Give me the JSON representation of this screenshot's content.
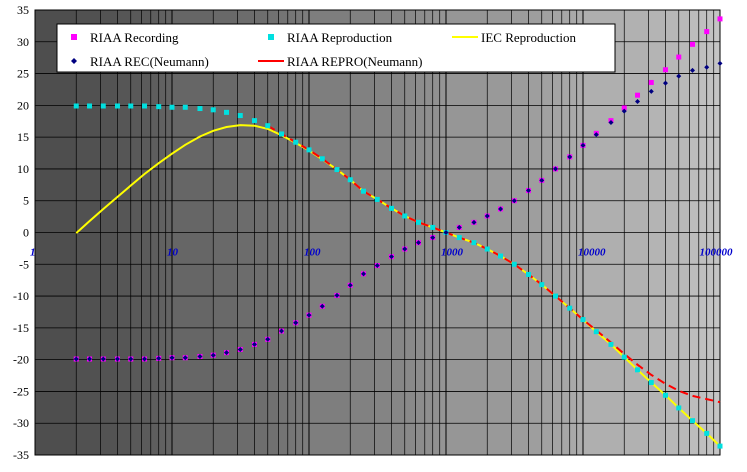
{
  "chart_data": {
    "type": "scatter",
    "x_scale": "log",
    "xlim": [
      1,
      100000
    ],
    "ylim": [
      -35,
      35
    ],
    "y_ticks": [
      35,
      30,
      25,
      20,
      15,
      10,
      5,
      0,
      -5,
      -10,
      -15,
      -20,
      -25,
      -30,
      -35
    ],
    "x_ticks": [
      {
        "value": 1,
        "label": "1"
      },
      {
        "value": 10,
        "label": "10"
      },
      {
        "value": 100,
        "label": "100"
      },
      {
        "value": 1000,
        "label": "1000"
      },
      {
        "value": 10000,
        "label": "10000"
      },
      {
        "value": 100000,
        "label": "100000"
      }
    ],
    "grid": true,
    "legend_position": "top",
    "legend_entries": [
      "RIAA Recording",
      "RIAA Reproduction",
      "IEC Reproduction",
      "RIAA REC(Neumann)",
      "RIAA REPRO(Neumann)"
    ],
    "series": [
      {
        "name": "RIAA Recording",
        "style": "square",
        "color": "#ff00ff",
        "x": [
          2,
          2.5,
          3.15,
          4,
          5,
          6.3,
          8,
          10,
          12.5,
          16,
          20,
          25,
          31.5,
          40,
          50,
          63,
          80,
          100,
          125,
          160,
          200,
          250,
          315,
          400,
          500,
          630,
          800,
          1000,
          1250,
          1600,
          2000,
          2500,
          3150,
          4000,
          5000,
          6300,
          8000,
          10000,
          12500,
          16000,
          20000,
          25000,
          31500,
          40000,
          50000,
          63000,
          80000,
          100000
        ],
        "y": [
          -19.9,
          -19.9,
          -19.9,
          -19.9,
          -19.9,
          -19.9,
          -19.8,
          -19.7,
          -19.7,
          -19.5,
          -19.3,
          -18.9,
          -18.4,
          -17.6,
          -16.8,
          -15.5,
          -14.2,
          -13.0,
          -11.6,
          -9.9,
          -8.3,
          -6.5,
          -5.2,
          -3.8,
          -2.6,
          -1.6,
          -0.8,
          0.0,
          0.8,
          1.6,
          2.6,
          3.7,
          5.0,
          6.6,
          8.2,
          10.0,
          11.9,
          13.7,
          15.6,
          17.6,
          19.6,
          21.6,
          23.6,
          25.6,
          27.6,
          29.6,
          31.6,
          33.6
        ]
      },
      {
        "name": "RIAA Reproduction",
        "style": "square",
        "color": "#00e0e0",
        "x": [
          2,
          2.5,
          3.15,
          4,
          5,
          6.3,
          8,
          10,
          12.5,
          16,
          20,
          25,
          31.5,
          40,
          50,
          63,
          80,
          100,
          125,
          160,
          200,
          250,
          315,
          400,
          500,
          630,
          800,
          1000,
          1250,
          1600,
          2000,
          2500,
          3150,
          4000,
          5000,
          6300,
          8000,
          10000,
          12500,
          16000,
          20000,
          25000,
          31500,
          40000,
          50000,
          63000,
          80000,
          100000
        ],
        "y": [
          19.9,
          19.9,
          19.9,
          19.9,
          19.9,
          19.9,
          19.8,
          19.7,
          19.7,
          19.5,
          19.3,
          18.9,
          18.4,
          17.6,
          16.8,
          15.5,
          14.2,
          13.0,
          11.6,
          9.9,
          8.3,
          6.5,
          5.2,
          3.8,
          2.6,
          1.6,
          0.8,
          0.0,
          -0.8,
          -1.6,
          -2.6,
          -3.7,
          -5.0,
          -6.6,
          -8.2,
          -10.0,
          -11.9,
          -13.7,
          -15.6,
          -17.6,
          -19.6,
          -21.6,
          -23.6,
          -25.6,
          -27.6,
          -29.6,
          -31.6,
          -33.6
        ]
      },
      {
        "name": "IEC Reproduction",
        "style": "line",
        "color": "#ffff00",
        "x": [
          2,
          2.5,
          3.15,
          4,
          5,
          6.3,
          8,
          10,
          12.5,
          16,
          20,
          25,
          31.5,
          40,
          50,
          63,
          80,
          100,
          125,
          160,
          200,
          250,
          315,
          400,
          500,
          630,
          800,
          1000,
          1250,
          1600,
          2000,
          2500,
          3150,
          4000,
          5000,
          6300,
          8000,
          10000,
          12500,
          16000,
          20000,
          25000,
          31500,
          40000,
          50000,
          63000,
          80000,
          100000
        ],
        "y": [
          -0.1,
          1.8,
          3.7,
          5.6,
          7.4,
          9.2,
          10.9,
          12.4,
          13.8,
          15.1,
          16.0,
          16.6,
          16.9,
          16.8,
          16.3,
          15.3,
          14.1,
          12.9,
          11.5,
          9.9,
          8.3,
          6.5,
          5.2,
          3.8,
          2.6,
          1.6,
          0.8,
          0.0,
          -0.8,
          -1.6,
          -2.6,
          -3.7,
          -5.0,
          -6.6,
          -8.2,
          -10.0,
          -11.9,
          -13.7,
          -15.6,
          -17.6,
          -19.6,
          -21.6,
          -23.6,
          -25.6,
          -27.6,
          -29.6,
          -31.6,
          -33.6
        ]
      },
      {
        "name": "RIAA REC(Neumann)",
        "style": "diamond",
        "color": "#000080",
        "x": [
          2,
          2.5,
          3.15,
          4,
          5,
          6.3,
          8,
          10,
          12.5,
          16,
          20,
          25,
          31.5,
          40,
          50,
          63,
          80,
          100,
          125,
          160,
          200,
          250,
          315,
          400,
          500,
          630,
          800,
          1000,
          1250,
          1600,
          2000,
          2500,
          3150,
          4000,
          5000,
          6300,
          8000,
          10000,
          12500,
          16000,
          20000,
          25000,
          31500,
          40000,
          50000,
          63000,
          80000,
          100000
        ],
        "y": [
          -19.9,
          -19.9,
          -19.9,
          -19.9,
          -19.9,
          -19.9,
          -19.8,
          -19.7,
          -19.7,
          -19.5,
          -19.3,
          -18.9,
          -18.4,
          -17.6,
          -16.8,
          -15.5,
          -14.2,
          -13.0,
          -11.6,
          -9.9,
          -8.3,
          -6.5,
          -5.2,
          -3.8,
          -2.6,
          -1.6,
          -0.8,
          0.0,
          0.8,
          1.6,
          2.6,
          3.7,
          5.0,
          6.6,
          8.2,
          10.0,
          11.9,
          13.7,
          15.4,
          17.3,
          19.1,
          20.6,
          22.2,
          23.5,
          24.6,
          25.5,
          26.0,
          26.6
        ]
      },
      {
        "name": "RIAA REPRO(Neumann)",
        "style": "line",
        "color": "#ff0000",
        "x": [
          50,
          63,
          80,
          100,
          125,
          160,
          200,
          250,
          315,
          400,
          500,
          630,
          800,
          1000,
          1250,
          1600,
          2000,
          2500,
          3150,
          4000,
          5000,
          6300,
          8000,
          10000,
          12500,
          16000,
          20000,
          25000,
          31500,
          40000,
          50000,
          63000,
          80000,
          100000
        ],
        "y": [
          16.8,
          15.5,
          14.2,
          13.0,
          11.6,
          9.9,
          8.3,
          6.5,
          5.2,
          3.8,
          2.6,
          1.6,
          0.8,
          0.0,
          -0.8,
          -1.6,
          -2.6,
          -3.7,
          -5.0,
          -6.6,
          -8.2,
          -10.0,
          -11.9,
          -13.7,
          -15.4,
          -17.3,
          -19.1,
          -20.8,
          -22.4,
          -23.8,
          -24.9,
          -25.7,
          -26.2,
          -26.7
        ]
      }
    ]
  }
}
